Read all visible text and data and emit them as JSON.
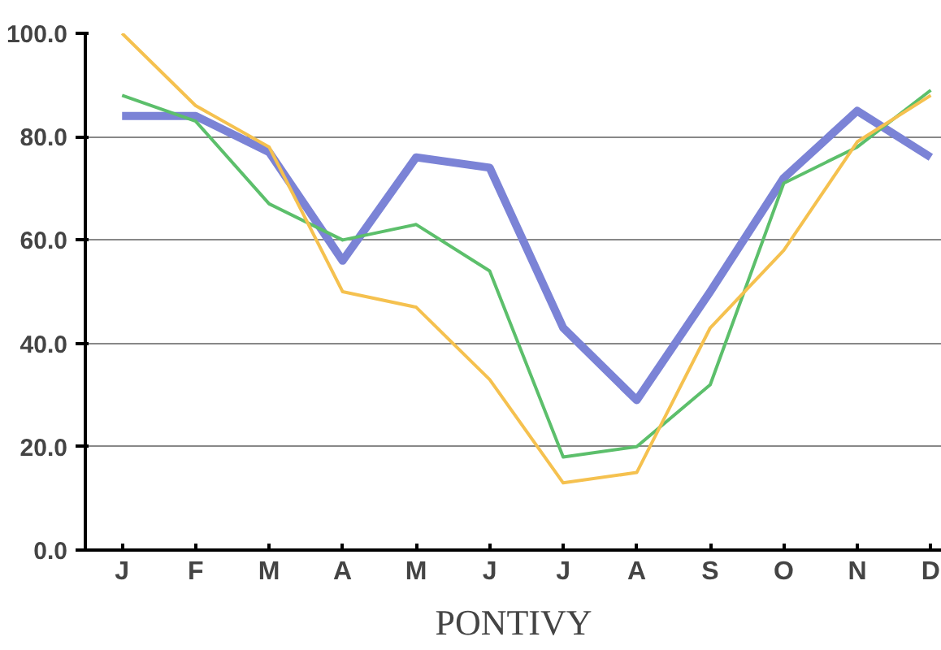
{
  "chart_data": {
    "type": "line",
    "title": "PONTIVY",
    "categories": [
      "J",
      "F",
      "M",
      "A",
      "M",
      "J",
      "J",
      "A",
      "S",
      "O",
      "N",
      "D"
    ],
    "series": [
      {
        "color": "#7b83d6",
        "values": [
          84,
          84,
          77,
          56,
          76,
          74,
          43,
          29,
          50,
          72,
          85,
          76
        ]
      },
      {
        "color": "#5cbf6b",
        "values": [
          88,
          83,
          67,
          60,
          63,
          54,
          18,
          20,
          32,
          71,
          78,
          89
        ]
      },
      {
        "color": "#f5c14f",
        "values": [
          100,
          86,
          78,
          50,
          47,
          33,
          13,
          15,
          43,
          58,
          79,
          88
        ]
      }
    ],
    "ylim": [
      0,
      100
    ],
    "yticks": [
      {
        "value": 0,
        "label": "0.0"
      },
      {
        "value": 20,
        "label": "20.0"
      },
      {
        "value": 40,
        "label": "40.0"
      },
      {
        "value": 60,
        "label": "60.0"
      },
      {
        "value": 80,
        "label": "80.0"
      },
      {
        "value": 100,
        "label": "100.0"
      }
    ],
    "grid": "y",
    "marker": "none",
    "line_style": "solid"
  }
}
